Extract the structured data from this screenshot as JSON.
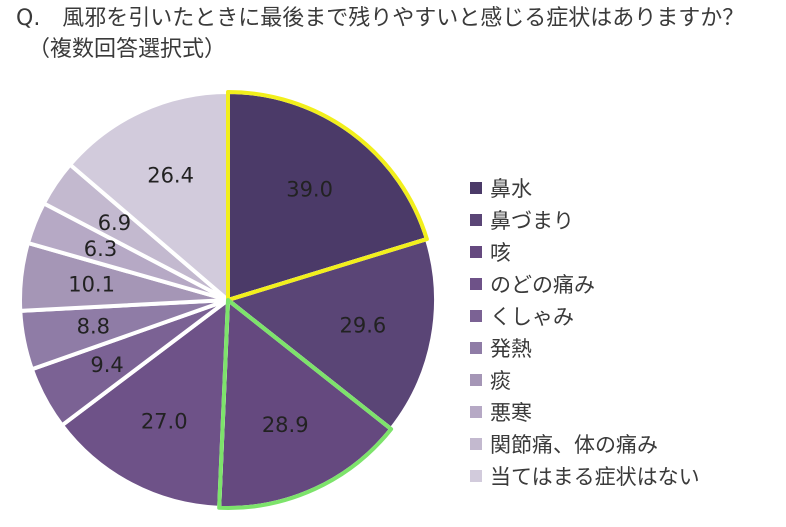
{
  "question": "Q.　風邪を引いたときに最後まで残りやすいと感じる症状はありますか？",
  "note": "（複数回答選択式）",
  "chart_data": {
    "type": "pie",
    "title": "Q.　風邪を引いたときに最後まで残りやすいと感じる症状はありますか？（複数回答選択式）",
    "categories": [
      "鼻水",
      "鼻づまり",
      "咳",
      "のどの痛み",
      "くしゃみ",
      "発熱",
      "痰",
      "悪寒",
      "関節痛、体の痛み",
      "当てはまる症状はない"
    ],
    "values": [
      39.0,
      29.6,
      28.9,
      27.0,
      9.4,
      8.8,
      10.1,
      6.3,
      6.9,
      26.4
    ],
    "value_labels": [
      "39.0",
      "29.6",
      "28.9",
      "27.0",
      "9.4",
      "8.8",
      "10.1",
      "6.3",
      "6.9",
      "26.4"
    ],
    "colors": [
      "#4b3a68",
      "#5a4576",
      "#65497f",
      "#6e5288",
      "#7b6294",
      "#8f7ca6",
      "#a596b6",
      "#b6a9c5",
      "#c3b9cf",
      "#d2cbdc"
    ],
    "highlights": [
      {
        "category": "鼻水",
        "color": "#f2ef1c"
      },
      {
        "category": "咳",
        "color": "#7de36b"
      }
    ],
    "legend_position": "right"
  }
}
